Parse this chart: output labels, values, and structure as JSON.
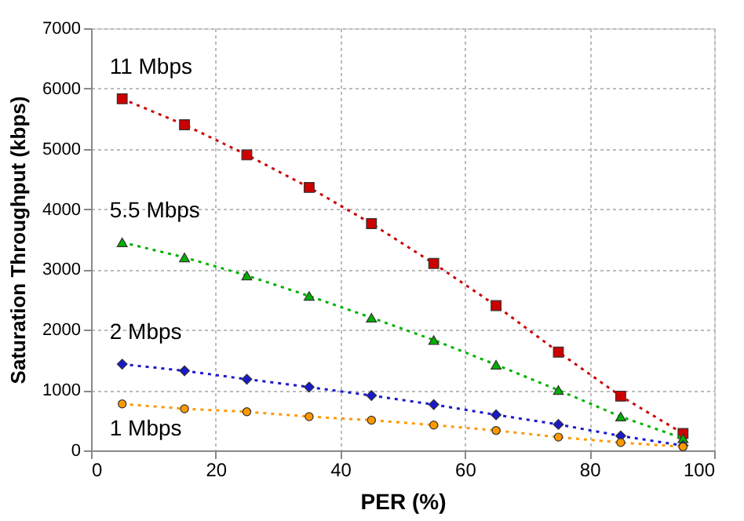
{
  "chart_data": {
    "type": "line",
    "xlabel": "PER (%)",
    "ylabel": "Saturation Throughput (kbps)",
    "x": [
      5,
      15,
      25,
      35,
      45,
      55,
      65,
      75,
      85,
      95
    ],
    "xlim": [
      0,
      100
    ],
    "xticks": [
      0,
      20,
      40,
      60,
      80,
      100
    ],
    "ylim": [
      0,
      7000
    ],
    "yticks": [
      0,
      1000,
      2000,
      3000,
      4000,
      5000,
      6000,
      7000
    ],
    "grid": true,
    "line_style": "dotted",
    "legend": false,
    "series": [
      {
        "name": "11 Mbps",
        "color": "#cc0000",
        "marker": "square",
        "values": [
          5830,
          5400,
          4900,
          4360,
          3760,
          3100,
          2400,
          1630,
          900,
          280
        ]
      },
      {
        "name": "5.5 Mbps",
        "color": "#00b000",
        "marker": "triangle",
        "values": [
          3450,
          3200,
          2900,
          2560,
          2200,
          1830,
          1420,
          1000,
          560,
          200
        ]
      },
      {
        "name": "2 Mbps",
        "color": "#1a1acc",
        "marker": "diamond",
        "values": [
          1430,
          1320,
          1180,
          1050,
          910,
          760,
          590,
          430,
          240,
          80
        ]
      },
      {
        "name": "1 Mbps",
        "color": "#ff9900",
        "marker": "circle",
        "values": [
          770,
          690,
          640,
          560,
          500,
          420,
          330,
          220,
          130,
          60
        ]
      }
    ]
  }
}
